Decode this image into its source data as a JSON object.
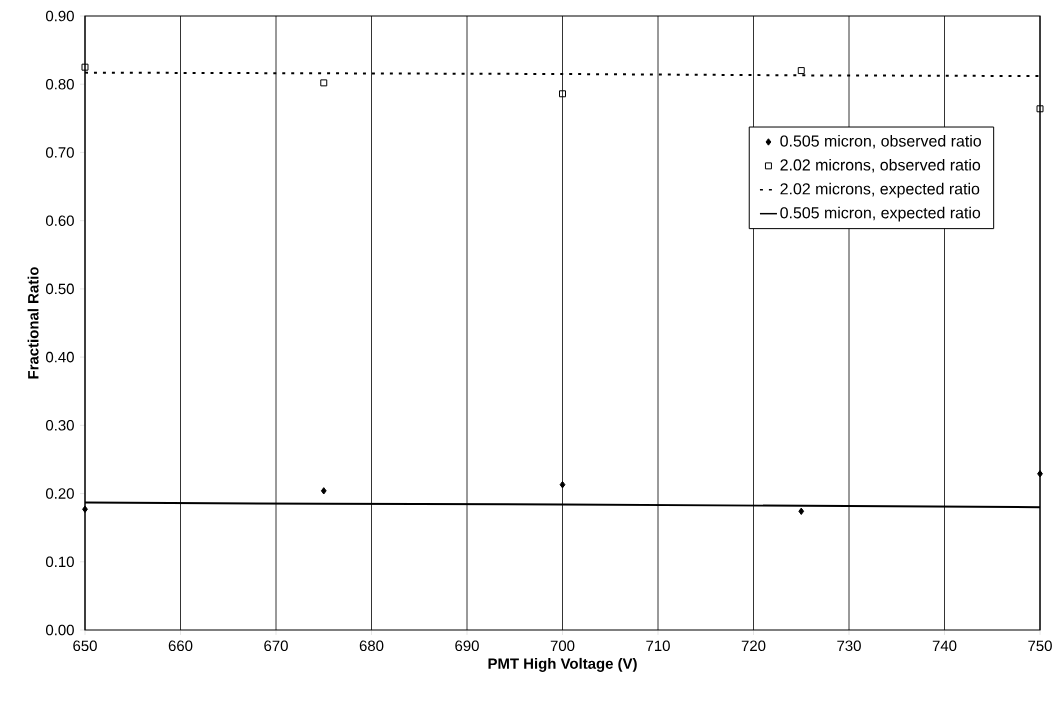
{
  "chart_data": {
    "type": "scatter",
    "xlabel": "PMT High Voltage (V)",
    "ylabel": "Fractional Ratio",
    "xlim": [
      650,
      750
    ],
    "ylim": [
      0,
      0.9
    ],
    "xticks": [
      650,
      660,
      670,
      680,
      690,
      700,
      710,
      720,
      730,
      740,
      750
    ],
    "yticks": [
      {
        "value": 0,
        "label": "0.00"
      },
      {
        "value": 0.1,
        "label": "0.10"
      },
      {
        "value": 0.2,
        "label": "0.20"
      },
      {
        "value": 0.3,
        "label": "0.30"
      },
      {
        "value": 0.4,
        "label": "0.40"
      },
      {
        "value": 0.5,
        "label": "0.50"
      },
      {
        "value": 0.6,
        "label": "0.60"
      },
      {
        "value": 0.7,
        "label": "0.70"
      },
      {
        "value": 0.8,
        "label": "0.80"
      },
      {
        "value": 0.9,
        "label": "0.90"
      }
    ],
    "grid": "x",
    "legend": "right",
    "x": [
      650,
      675,
      700,
      725,
      750
    ],
    "series": [
      {
        "name": "0.505 micron, observed ratio",
        "marker": "diamond",
        "color": "#000000",
        "values": [
          0.177,
          0.204,
          0.213,
          0.174,
          0.229
        ]
      },
      {
        "name": "2.02 microns, observed ratio",
        "marker": "square",
        "color": "#000000",
        "values": [
          0.825,
          0.802,
          0.786,
          0.82,
          0.764
        ]
      },
      {
        "name": "2.02 microns, expected ratio",
        "type": "line",
        "line_style": "dotted",
        "color": "#000000",
        "values": [
          0.817,
          0.816,
          0.815,
          0.813,
          0.812
        ]
      },
      {
        "name": "0.505 micron, expected  ratio",
        "type": "line",
        "line_style": "solid",
        "color": "#000000",
        "values": [
          0.187,
          0.185,
          0.184,
          0.182,
          0.18
        ]
      }
    ]
  }
}
